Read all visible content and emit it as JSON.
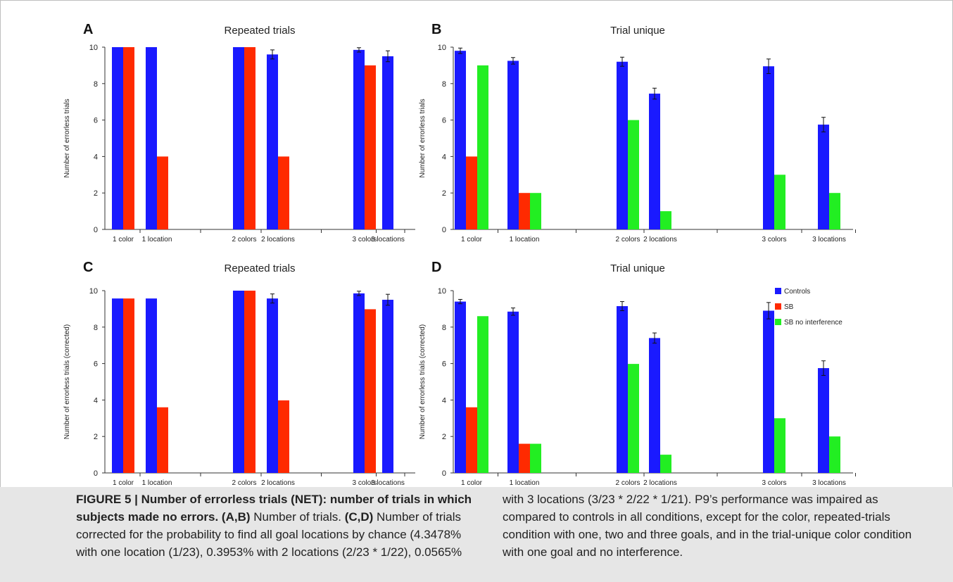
{
  "colors": {
    "controls": "#1a1aff",
    "sb": "#ff2a00",
    "sb_no_interference": "#22ee22"
  },
  "chart_data": [
    {
      "panel": "A",
      "type": "bar",
      "title": "Repeated trials",
      "ylabel": "Number of errorless trials",
      "ylim": [
        0,
        10
      ],
      "yticks": [
        "0",
        "2",
        "4",
        "6",
        "8",
        "10"
      ],
      "categories": [
        "1 color",
        "1 location",
        "2 colors",
        "2 locations",
        "3 colors",
        "3 locations"
      ],
      "series": [
        {
          "name": "Controls",
          "values": [
            10,
            10,
            10,
            9.6,
            9.85,
            9.5
          ],
          "errors": [
            0,
            0,
            0,
            0.25,
            0.12,
            0.3
          ]
        },
        {
          "name": "SB",
          "values": [
            10,
            4,
            10,
            4,
            9,
            null
          ],
          "errors": null
        }
      ]
    },
    {
      "panel": "B",
      "type": "bar",
      "title": "Trial unique",
      "ylabel": "Number of errorless trials",
      "ylim": [
        0,
        10
      ],
      "yticks": [
        "0",
        "2",
        "4",
        "6",
        "8",
        "10"
      ],
      "categories": [
        "1 color",
        "1 location",
        "2 colors",
        "2 locations",
        "3 colors",
        "3 locations"
      ],
      "series": [
        {
          "name": "Controls",
          "values": [
            9.8,
            9.25,
            9.2,
            7.45,
            8.95,
            5.75
          ],
          "errors": [
            0.15,
            0.18,
            0.25,
            0.3,
            0.4,
            0.4
          ]
        },
        {
          "name": "SB",
          "values": [
            4,
            2,
            null,
            null,
            null,
            null
          ],
          "errors": null
        },
        {
          "name": "SB no interference",
          "values": [
            9,
            2,
            6,
            1,
            3,
            2
          ],
          "errors": null
        }
      ]
    },
    {
      "panel": "C",
      "type": "bar",
      "title": "Repeated trials",
      "ylabel": "Number of errorless trials (corrected)",
      "ylim": [
        0,
        10
      ],
      "yticks": [
        "0",
        "2",
        "4",
        "6",
        "8",
        "10"
      ],
      "categories": [
        "1 color",
        "1 location",
        "2 colors",
        "2 locations",
        "3 colors",
        "3 locations"
      ],
      "series": [
        {
          "name": "Controls",
          "values": [
            9.57,
            9.57,
            10,
            9.57,
            9.85,
            9.5
          ],
          "errors": [
            0,
            0,
            0,
            0.25,
            0.12,
            0.3
          ]
        },
        {
          "name": "SB",
          "values": [
            9.57,
            3.6,
            10,
            3.98,
            8.98,
            null
          ],
          "errors": null
        }
      ]
    },
    {
      "panel": "D",
      "type": "bar",
      "title": "Trial unique",
      "ylabel": "Number of errorless trials (corrected)",
      "ylim": [
        0,
        10
      ],
      "yticks": [
        "0",
        "2",
        "4",
        "6",
        "8",
        "10"
      ],
      "categories": [
        "1 color",
        "1 location",
        "2 colors",
        "2 locations",
        "3 colors",
        "3 locations"
      ],
      "legend": {
        "position": "top-right",
        "entries": [
          "Controls",
          "SB",
          "SB no interference"
        ]
      },
      "series": [
        {
          "name": "Controls",
          "values": [
            9.4,
            8.85,
            9.15,
            7.4,
            8.9,
            5.75
          ],
          "errors": [
            0.12,
            0.2,
            0.25,
            0.28,
            0.45,
            0.4
          ]
        },
        {
          "name": "SB",
          "values": [
            3.6,
            1.6,
            null,
            null,
            null,
            null
          ],
          "errors": null
        },
        {
          "name": "SB no interference",
          "values": [
            8.6,
            1.6,
            5.98,
            1,
            3,
            2
          ],
          "errors": null
        }
      ]
    }
  ],
  "caption": {
    "figure_label": "FIGURE 5 | Number of errorless trials (NET): number of trials in which subjects made no errors.",
    "ab_label": "(A,B)",
    "ab_text": "Number of trials.",
    "cd_label": "(C,D)",
    "cd_text": "Number of trials corrected for the probability to find all goal locations by chance (4.3478% with one location (1/23), 0.3953% with 2 locations (2/23 * 1/22), 0.0565%",
    "right_text": "with 3 locations (3/23 * 2/22 * 1/21). P9’s performance was impaired as compared to controls in all conditions, except for the color, repeated-trials condition with one, two and three goals, and in the trial-unique color condition with one goal and no interference."
  }
}
